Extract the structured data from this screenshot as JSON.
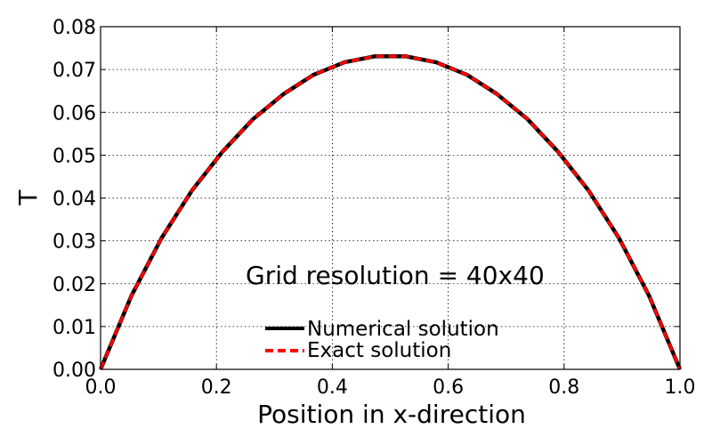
{
  "chart_data": {
    "type": "line",
    "xlabel": "Position in x-direction",
    "ylabel": "T",
    "xlim": [
      0.0,
      1.0
    ],
    "ylim": [
      0.0,
      0.08
    ],
    "xticks": [
      "0.0",
      "0.2",
      "0.4",
      "0.6",
      "0.8",
      "1.0"
    ],
    "yticks": [
      "0.00",
      "0.01",
      "0.02",
      "0.03",
      "0.04",
      "0.05",
      "0.06",
      "0.07",
      "0.08"
    ],
    "grid": true,
    "legend_position": "bottom-center",
    "annotation": "Grid resolution = 40x40",
    "series": [
      {
        "name": "Numerical solution",
        "color": "#000000",
        "style": "solid",
        "x": [
          0.0,
          0.053,
          0.105,
          0.158,
          0.211,
          0.263,
          0.316,
          0.368,
          0.421,
          0.474,
          0.526,
          0.579,
          0.632,
          0.684,
          0.737,
          0.789,
          0.842,
          0.895,
          0.947,
          1.0
        ],
        "y": [
          0.0,
          0.0171,
          0.0306,
          0.0418,
          0.0509,
          0.0584,
          0.0643,
          0.0688,
          0.0717,
          0.0731,
          0.0731,
          0.0717,
          0.0688,
          0.0643,
          0.0584,
          0.0509,
          0.0418,
          0.0306,
          0.0171,
          0.0
        ]
      },
      {
        "name": "Exact solution",
        "color": "#ff0000",
        "style": "dashed",
        "x": [
          0.0,
          0.053,
          0.105,
          0.158,
          0.211,
          0.263,
          0.316,
          0.368,
          0.421,
          0.474,
          0.526,
          0.579,
          0.632,
          0.684,
          0.737,
          0.789,
          0.842,
          0.895,
          0.947,
          1.0
        ],
        "y": [
          0.0,
          0.0171,
          0.0306,
          0.0418,
          0.0509,
          0.0584,
          0.0643,
          0.0688,
          0.0717,
          0.0731,
          0.0731,
          0.0717,
          0.0688,
          0.0643,
          0.0584,
          0.0509,
          0.0418,
          0.0306,
          0.0171,
          0.0
        ]
      }
    ]
  }
}
